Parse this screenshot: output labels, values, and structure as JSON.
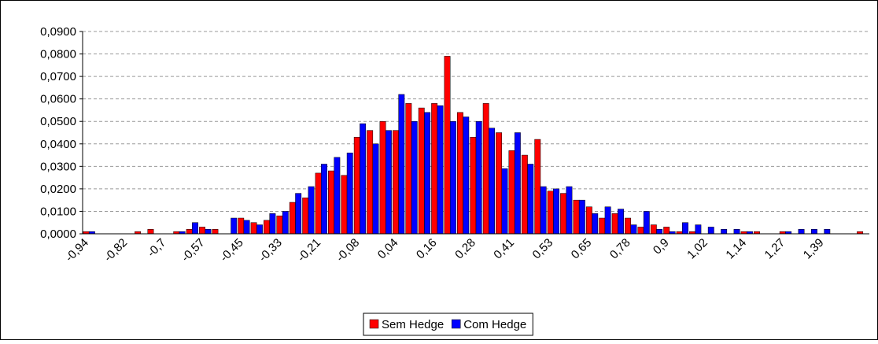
{
  "chart_data": {
    "type": "bar",
    "categories": [
      "-0,94",
      null,
      null,
      "-0,82",
      null,
      null,
      "-0,7",
      null,
      null,
      "-0,57",
      null,
      null,
      "-0,45",
      null,
      null,
      "-0,33",
      null,
      null,
      "-0,21",
      null,
      null,
      "-0,08",
      null,
      null,
      "0,04",
      null,
      null,
      "0,16",
      null,
      null,
      "0,28",
      null,
      null,
      "0,41",
      null,
      null,
      "0,53",
      null,
      null,
      "0,65",
      null,
      null,
      "0,78",
      null,
      null,
      "0,9",
      null,
      null,
      "1,02",
      null,
      null,
      "1,14",
      null,
      null,
      "1,27",
      null,
      null,
      "1,39",
      null,
      null,
      null
    ],
    "series": [
      {
        "name": "Sem Hedge",
        "color": "#ff0000",
        "values": [
          0.001,
          0,
          0,
          0,
          0.001,
          0.002,
          0,
          0.001,
          0.002,
          0.003,
          0.002,
          0,
          0.007,
          0.005,
          0.006,
          0.008,
          0.014,
          0.016,
          0.027,
          0.028,
          0.026,
          0.043,
          0.046,
          0.05,
          0.046,
          0.058,
          0.056,
          0.058,
          0.079,
          0.054,
          0.043,
          0.058,
          0.045,
          0.037,
          0.035,
          0.042,
          0.019,
          0.018,
          0.015,
          0.012,
          0.007,
          0.009,
          0.007,
          0.003,
          0.004,
          0.003,
          0.001,
          0.001,
          0,
          0,
          0,
          0.001,
          0.001,
          0,
          0.001,
          0,
          0,
          0,
          0,
          0,
          0.001
        ]
      },
      {
        "name": "Com Hedge",
        "color": "#0000ff",
        "values": [
          0.001,
          0,
          0,
          0,
          0,
          0,
          0,
          0.001,
          0.005,
          0.002,
          0,
          0.007,
          0.006,
          0.004,
          0.009,
          0.01,
          0.018,
          0.021,
          0.031,
          0.034,
          0.036,
          0.049,
          0.04,
          0.046,
          0.062,
          0.05,
          0.054,
          0.057,
          0.05,
          0.052,
          0.05,
          0.047,
          0.029,
          0.045,
          0.031,
          0.021,
          0.02,
          0.021,
          0.015,
          0.009,
          0.012,
          0.011,
          0.004,
          0.01,
          0.002,
          0.001,
          0.005,
          0.004,
          0.003,
          0.002,
          0.002,
          0.001,
          0,
          0,
          0.001,
          0.002,
          0.002,
          0.002,
          0,
          0,
          0
        ]
      }
    ],
    "ylim": [
      0,
      0.09
    ],
    "yticks": [
      {
        "value": 0,
        "label": "0,0000"
      },
      {
        "value": 0.01,
        "label": "0,0100"
      },
      {
        "value": 0.02,
        "label": "0,0200"
      },
      {
        "value": 0.03,
        "label": "0,0300"
      },
      {
        "value": 0.04,
        "label": "0,0400"
      },
      {
        "value": 0.05,
        "label": "0,0500"
      },
      {
        "value": 0.06,
        "label": "0,0600"
      },
      {
        "value": 0.07,
        "label": "0,0700"
      },
      {
        "value": 0.08,
        "label": "0,0800"
      },
      {
        "value": 0.09,
        "label": "0,0900"
      }
    ],
    "grid": true,
    "legend": "bottom"
  }
}
